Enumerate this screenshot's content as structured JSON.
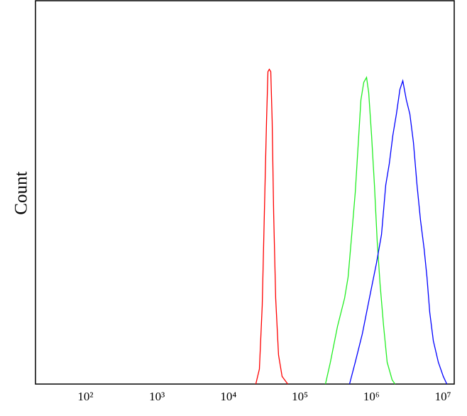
{
  "chart_data": {
    "type": "line",
    "y_label": "Count",
    "xscale": "log",
    "xlim": [
      20,
      14400000
    ],
    "ylim": [
      0,
      100
    ],
    "xticks": [
      {
        "value": 100,
        "label": "10²"
      },
      {
        "value": 1000,
        "label": "10³"
      },
      {
        "value": 10000,
        "label": "10⁴"
      },
      {
        "value": 100000,
        "label": "10⁵"
      },
      {
        "value": 1000000,
        "label": "10⁶"
      },
      {
        "value": 10000000,
        "label": "10⁷"
      }
    ],
    "series": [
      {
        "color": "#ff0000",
        "x": [
          24150,
          27100,
          29700,
          31800,
          34100,
          35700,
          37300,
          39100,
          40900,
          42900,
          45800,
          50200,
          56300,
          67600
        ],
        "values": [
          0,
          3.9,
          20.5,
          44.5,
          68.6,
          81.5,
          82.1,
          81.5,
          68.6,
          44.5,
          22.4,
          7.6,
          2,
          0
        ]
      },
      {
        "color": "#22ee22",
        "x": [
          227500,
          266700,
          335000,
          421700,
          472000,
          529700,
          594300,
          665300,
          712900,
          781600,
          855000,
          916200,
          1004600,
          1101600,
          1205000,
          1321000,
          1483000,
          1660000,
          1950000,
          2138000
        ],
        "values": [
          0,
          5.7,
          15,
          22.4,
          27.9,
          38.8,
          50,
          64.9,
          74.1,
          78.7,
          80,
          76,
          64.9,
          52,
          37.2,
          26.1,
          15,
          5.7,
          1.1,
          0
        ]
      },
      {
        "color": "#0000ff",
        "x": [
          494300,
          594300,
          746400,
          937500,
          1178000,
          1384000,
          1586000,
          1779000,
          1995000,
          2234000,
          2506000,
          2748000,
          3083000,
          3451000,
          3873000,
          4345000,
          4864000,
          5458000,
          5984000,
          6546000,
          7345000,
          8630000,
          10120000,
          11350000
        ],
        "values": [
          0,
          5.7,
          13.1,
          22.4,
          31.6,
          39,
          51.9,
          57.5,
          64.9,
          70.4,
          76.9,
          79.1,
          74.1,
          70.4,
          63,
          51.9,
          42.7,
          35.3,
          27.9,
          18.7,
          11.3,
          5.7,
          2,
          0
        ]
      }
    ]
  }
}
